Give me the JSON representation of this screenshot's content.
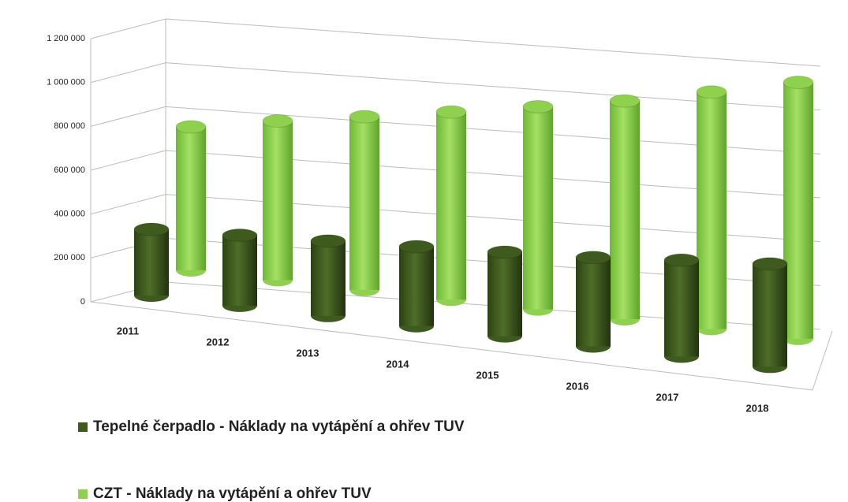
{
  "chart_data": {
    "type": "bar3d",
    "categories": [
      "2011",
      "2012",
      "2013",
      "2014",
      "2015",
      "2016",
      "2017",
      "2018"
    ],
    "series": [
      {
        "name": "Tepelné čerpadlo - Náklady na vytápění a ohřev TUV",
        "color": "#3f5a1e",
        "values": [
          300000,
          310000,
          320000,
          330000,
          340000,
          350000,
          370000,
          385000
        ]
      },
      {
        "name": "CZT - Náklady na vytápění a ohřev TUV",
        "color": "#8fd14f",
        "values": [
          650000,
          700000,
          740000,
          780000,
          820000,
          860000,
          910000,
          960000
        ]
      }
    ],
    "ylim": [
      0,
      1200000
    ],
    "yticks": [
      0,
      {
        "value": 200000,
        "label": "200 000"
      },
      {
        "value": 400000,
        "label": "400 000"
      },
      {
        "value": 600000,
        "label": "600 000"
      },
      {
        "value": 800000,
        "label": "800 000"
      },
      {
        "value": 1000000,
        "label": "1 000 000"
      },
      {
        "value": 1200000,
        "label": "1 200 000"
      }
    ],
    "grid": true
  }
}
